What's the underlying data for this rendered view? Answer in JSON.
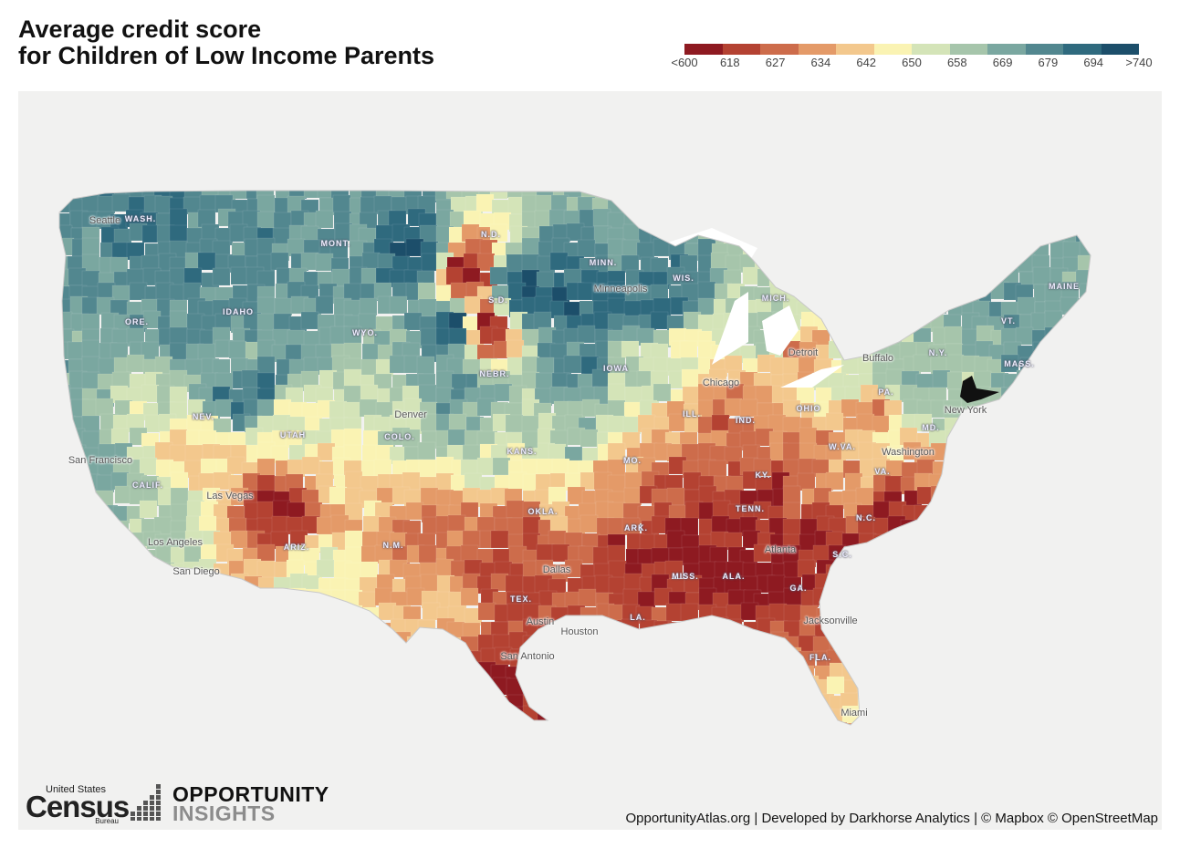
{
  "title": {
    "line1": "Average credit score",
    "line2": "for Children of Low Income Parents"
  },
  "legend": {
    "colors": [
      "#8e1a21",
      "#b44232",
      "#cd6c4b",
      "#e49a68",
      "#f3c88d",
      "#faf3b3",
      "#d4e4b8",
      "#a6c5ab",
      "#7aa7a0",
      "#52878f",
      "#2f6a7e",
      "#1c4e6a"
    ],
    "ticks": [
      "<600",
      "618",
      "627",
      "634",
      "642",
      "650",
      "658",
      "669",
      "679",
      "694",
      ">740"
    ]
  },
  "map": {
    "cities": [
      {
        "id": "seattle",
        "label": "Seattle"
      },
      {
        "id": "san-francisco",
        "label": "San Francisco"
      },
      {
        "id": "las-vegas",
        "label": "Las Vegas"
      },
      {
        "id": "los-angeles",
        "label": "Los Angeles"
      },
      {
        "id": "san-diego",
        "label": "San Diego"
      },
      {
        "id": "denver",
        "label": "Denver"
      },
      {
        "id": "minneapolis",
        "label": "Minneapolis"
      },
      {
        "id": "chicago",
        "label": "Chicago"
      },
      {
        "id": "detroit",
        "label": "Detroit"
      },
      {
        "id": "buffalo",
        "label": "Buffalo"
      },
      {
        "id": "new-york",
        "label": "New York"
      },
      {
        "id": "washington",
        "label": "Washington"
      },
      {
        "id": "dallas",
        "label": "Dallas"
      },
      {
        "id": "austin",
        "label": "Austin"
      },
      {
        "id": "houston",
        "label": "Houston"
      },
      {
        "id": "san-antonio",
        "label": "San Antonio"
      },
      {
        "id": "atlanta",
        "label": "Atlanta"
      },
      {
        "id": "jacksonville",
        "label": "Jacksonville"
      },
      {
        "id": "miami",
        "label": "Miami"
      }
    ],
    "states": [
      {
        "id": "wash",
        "label": "WASH."
      },
      {
        "id": "ore",
        "label": "ORE."
      },
      {
        "id": "idaho",
        "label": "IDAHO"
      },
      {
        "id": "mont",
        "label": "MONT."
      },
      {
        "id": "wyo",
        "label": "WYO."
      },
      {
        "id": "nev",
        "label": "NEV."
      },
      {
        "id": "utah",
        "label": "UTAH"
      },
      {
        "id": "colo",
        "label": "COLO."
      },
      {
        "id": "calif",
        "label": "CALIF."
      },
      {
        "id": "ariz",
        "label": "ARIZ."
      },
      {
        "id": "nm",
        "label": "N.M."
      },
      {
        "id": "nd",
        "label": "N.D."
      },
      {
        "id": "sd",
        "label": "S.D."
      },
      {
        "id": "nebr",
        "label": "NEBR."
      },
      {
        "id": "kans",
        "label": "KANS."
      },
      {
        "id": "okla",
        "label": "OKLA."
      },
      {
        "id": "tex",
        "label": "TEX."
      },
      {
        "id": "minn",
        "label": "MINN."
      },
      {
        "id": "iowa",
        "label": "IOWA"
      },
      {
        "id": "mo",
        "label": "MO."
      },
      {
        "id": "ark",
        "label": "ARK."
      },
      {
        "id": "la",
        "label": "LA."
      },
      {
        "id": "wis",
        "label": "WIS."
      },
      {
        "id": "ill",
        "label": "ILL."
      },
      {
        "id": "mich",
        "label": "MICH."
      },
      {
        "id": "ind",
        "label": "IND."
      },
      {
        "id": "ohio",
        "label": "OHIO"
      },
      {
        "id": "ky",
        "label": "KY."
      },
      {
        "id": "tenn",
        "label": "TENN."
      },
      {
        "id": "miss",
        "label": "MISS."
      },
      {
        "id": "ala",
        "label": "ALA."
      },
      {
        "id": "ga",
        "label": "GA."
      },
      {
        "id": "fla",
        "label": "FLA."
      },
      {
        "id": "sc",
        "label": "S.C."
      },
      {
        "id": "nc",
        "label": "N.C."
      },
      {
        "id": "va",
        "label": "VA."
      },
      {
        "id": "wva",
        "label": "W.VA."
      },
      {
        "id": "pa",
        "label": "PA."
      },
      {
        "id": "ny",
        "label": "N.Y."
      },
      {
        "id": "md",
        "label": "MD."
      },
      {
        "id": "vt",
        "label": "VT."
      },
      {
        "id": "mass",
        "label": "MASS."
      },
      {
        "id": "maine",
        "label": "MAINE"
      }
    ]
  },
  "logos": {
    "census_top": "United States",
    "census_main": "Census",
    "census_bottom": "Bureau",
    "oi_line1": "OPPORTUNITY",
    "oi_line2": "INSIGHTS"
  },
  "attribution": "OpportunityAtlas.org | Developed by Darkhorse Analytics | © Mapbox © OpenStreetMap"
}
